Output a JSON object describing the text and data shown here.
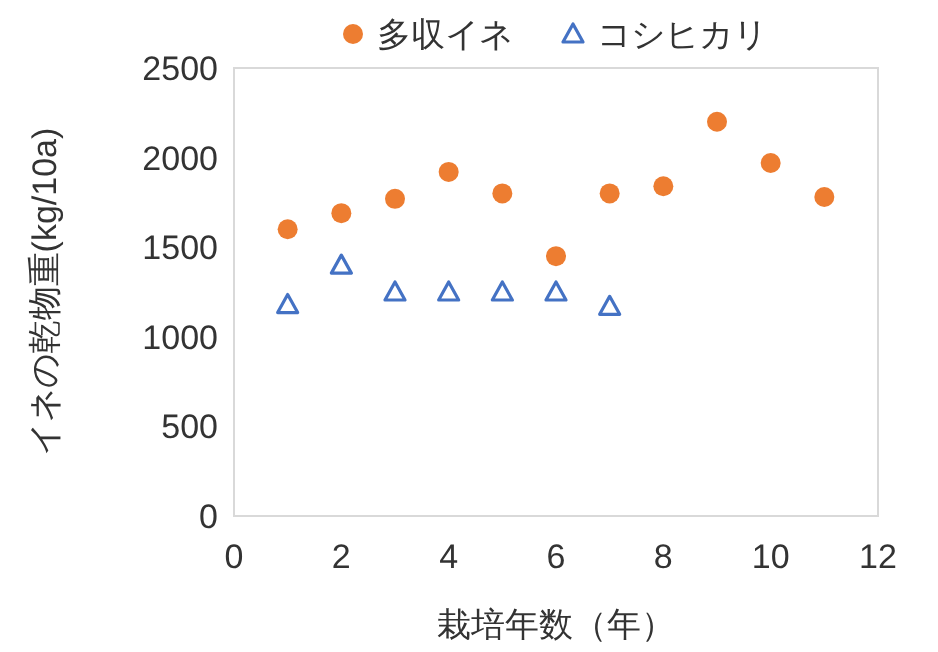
{
  "chart_data": {
    "type": "scatter",
    "xlabel": "栽培年数（年）",
    "ylabel": "イネの乾物重(kg/10a)",
    "xlim": [
      0,
      12
    ],
    "xticks": [
      0,
      2,
      4,
      6,
      8,
      10,
      12
    ],
    "ylim": [
      0,
      2500
    ],
    "yticks": [
      0,
      500,
      1000,
      1500,
      2000,
      2500
    ],
    "grid": false,
    "legend": "top",
    "series": [
      {
        "name": "多収イネ",
        "color": "#ed7d31",
        "marker": "circle",
        "x": [
          1,
          2,
          3,
          4,
          5,
          6,
          7,
          8,
          9,
          10,
          11
        ],
        "values": [
          1600,
          1690,
          1770,
          1920,
          1800,
          1450,
          1800,
          1840,
          2200,
          1970,
          1780
        ]
      },
      {
        "name": "コシヒカリ",
        "color": "#4472c4",
        "marker": "triangle",
        "x": [
          1,
          2,
          3,
          4,
          5,
          6,
          7
        ],
        "values": [
          1180,
          1400,
          1250,
          1250,
          1250,
          1250,
          1170
        ]
      }
    ]
  }
}
